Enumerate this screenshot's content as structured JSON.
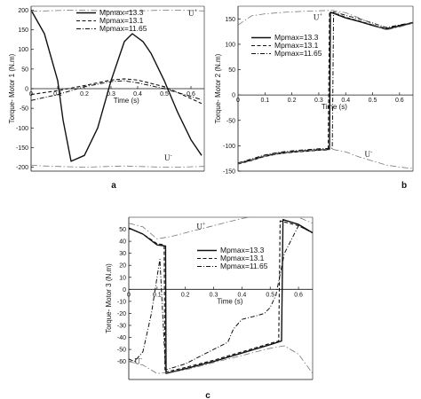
{
  "chart_data": [
    {
      "type": "line",
      "panel_label": "a",
      "ylabel": "Torque- Motor 1 (N.m)",
      "xlabel": "Time (s)",
      "xlim": [
        0,
        0.65
      ],
      "ylim": [
        -210,
        210
      ],
      "x_ticks": [
        0.1,
        0.2,
        0.3,
        0.4,
        0.5,
        0.6
      ],
      "x_tick_labels": [
        "0.1",
        "0.2",
        "0.3",
        "0.4",
        "0.5",
        "0.6"
      ],
      "y_ticks": [
        200,
        150,
        100,
        50,
        0,
        -50,
        -100,
        -150,
        -200
      ],
      "y_tick_labels": [
        "200",
        "150",
        "100",
        "50",
        "0",
        "-50",
        "-100",
        "-150",
        "-200"
      ],
      "bound_labels": [
        {
          "text": "U",
          "sup": "+",
          "x": 0.59,
          "y": 185
        },
        {
          "text": "U",
          "sup": "-",
          "x": 0.5,
          "y": -183
        }
      ],
      "legend": {
        "placement": "top-center",
        "entries": [
          "Mpmax=13.3",
          "Mpmax=13.1",
          "Mpmax=11.65"
        ]
      },
      "series": [
        {
          "name": "Mpmax=13.3",
          "style": "solid",
          "x": [
            0,
            0.05,
            0.1,
            0.12,
            0.15,
            0.2,
            0.25,
            0.3,
            0.35,
            0.38,
            0.42,
            0.45,
            0.5,
            0.55,
            0.6,
            0.64
          ],
          "y": [
            200,
            140,
            20,
            -80,
            -185,
            -170,
            -100,
            20,
            120,
            140,
            120,
            90,
            20,
            -60,
            -130,
            -170
          ]
        },
        {
          "name": "Mpmax=13.1",
          "style": "dashed",
          "x": [
            0,
            0.1,
            0.2,
            0.3,
            0.35,
            0.4,
            0.5,
            0.55,
            0.6,
            0.64
          ],
          "y": [
            -15,
            -5,
            8,
            22,
            25,
            22,
            5,
            -10,
            -25,
            -38
          ]
        },
        {
          "name": "Mpmax=11.65",
          "style": "dashdot",
          "x": [
            0,
            0.1,
            0.2,
            0.3,
            0.35,
            0.4,
            0.5,
            0.55,
            0.6,
            0.64
          ],
          "y": [
            -30,
            -15,
            5,
            18,
            20,
            15,
            0,
            -10,
            -20,
            -28
          ]
        },
        {
          "name": "U+",
          "style": "bound",
          "x": [
            0,
            0.05,
            0.1,
            0.15,
            0.2,
            0.25,
            0.3,
            0.35,
            0.4,
            0.45,
            0.5,
            0.55,
            0.6,
            0.65
          ],
          "y": [
            197,
            198,
            199,
            200,
            200,
            199,
            198,
            197,
            198,
            199,
            200,
            200,
            199,
            198
          ]
        },
        {
          "name": "U-",
          "style": "bound",
          "x": [
            0,
            0.05,
            0.1,
            0.15,
            0.2,
            0.25,
            0.3,
            0.35,
            0.4,
            0.45,
            0.5,
            0.55,
            0.6,
            0.65
          ],
          "y": [
            -195,
            -197,
            -198,
            -199,
            -200,
            -199,
            -198,
            -197,
            -198,
            -199,
            -200,
            -200,
            -199,
            -198
          ]
        }
      ]
    },
    {
      "type": "line",
      "panel_label": "b",
      "ylabel": "Torque- Motor 2 (N.m)",
      "xlabel": "Time (s)",
      "xlim": [
        0,
        0.65
      ],
      "ylim": [
        -150,
        175
      ],
      "x_ticks": [
        0.1,
        0.2,
        0.3,
        0.4,
        0.5,
        0.6
      ],
      "x_tick_labels": [
        "0.1",
        "0.2",
        "0.3",
        "0.4",
        "0.5",
        "0.6"
      ],
      "y_ticks": [
        150,
        100,
        50,
        0,
        -50,
        -100,
        -150
      ],
      "y_tick_labels": [
        "150",
        "100",
        "50",
        "0",
        "-50",
        "-100",
        "-150"
      ],
      "bound_labels": [
        {
          "text": "U",
          "sup": "+",
          "x": 0.28,
          "y": 148
        },
        {
          "text": "U",
          "sup": "-",
          "x": 0.47,
          "y": -122
        }
      ],
      "legend": {
        "placement": "top-left",
        "entries": [
          "Mpmax=13.3",
          "Mpmax=13.1",
          "Mpmax=11.65"
        ]
      },
      "series": [
        {
          "name": "Mpmax=13.3",
          "style": "solid",
          "x": [
            0,
            0.05,
            0.1,
            0.15,
            0.2,
            0.25,
            0.3,
            0.34,
            0.343,
            0.36,
            0.4,
            0.45,
            0.5,
            0.55,
            0.6,
            0.65
          ],
          "y": [
            -135,
            -128,
            -120,
            -115,
            -112,
            -110,
            -108,
            -107,
            163,
            160,
            152,
            145,
            137,
            130,
            136,
            142
          ]
        },
        {
          "name": "Mpmax=13.1",
          "style": "dashed",
          "x": [
            0,
            0.05,
            0.1,
            0.15,
            0.2,
            0.25,
            0.3,
            0.335,
            0.34,
            0.36,
            0.4,
            0.45,
            0.5,
            0.55,
            0.6,
            0.65
          ],
          "y": [
            -136,
            -129,
            -121,
            -116,
            -113,
            -111,
            -109,
            -108,
            164,
            161,
            153,
            146,
            138,
            131,
            137,
            143
          ]
        },
        {
          "name": "Mpmax=11.65",
          "style": "dashdot",
          "x": [
            0,
            0.05,
            0.1,
            0.15,
            0.2,
            0.25,
            0.3,
            0.35,
            0.355,
            0.4,
            0.45,
            0.5,
            0.55,
            0.6,
            0.65
          ],
          "y": [
            -134,
            -126,
            -118,
            -113,
            -110,
            -108,
            -106,
            -105,
            164,
            157,
            150,
            142,
            133,
            138,
            143
          ]
        },
        {
          "name": "U+",
          "style": "bound",
          "x": [
            0,
            0.05,
            0.1,
            0.15,
            0.2,
            0.25,
            0.3,
            0.35,
            0.4,
            0.45,
            0.5,
            0.55,
            0.6,
            0.65
          ],
          "y": [
            138,
            156,
            160,
            162,
            164,
            165,
            166,
            167,
            162,
            152,
            140,
            128,
            134,
            142
          ]
        },
        {
          "name": "U-",
          "style": "bound",
          "x": [
            0,
            0.05,
            0.1,
            0.15,
            0.2,
            0.25,
            0.3,
            0.35,
            0.4,
            0.45,
            0.5,
            0.55,
            0.6,
            0.65
          ],
          "y": [
            -135,
            -128,
            -120,
            -115,
            -112,
            -110,
            -108,
            -107,
            -112,
            -122,
            -130,
            -138,
            -142,
            -145
          ]
        }
      ]
    },
    {
      "type": "line",
      "panel_label": "c",
      "ylabel": "Torque- Motor 3 (N.m)",
      "xlabel": "Time (s)",
      "xlim": [
        0,
        0.65
      ],
      "ylim": [
        -75,
        60
      ],
      "x_ticks": [
        0.1,
        0.2,
        0.3,
        0.4,
        0.5,
        0.6
      ],
      "x_tick_labels": [
        "0.1",
        "0.2",
        "0.3",
        "0.4",
        "0.5",
        "0.6"
      ],
      "y_ticks": [
        50,
        40,
        30,
        20,
        10,
        0,
        -10,
        -20,
        -30,
        -40,
        -50,
        -60
      ],
      "y_tick_labels": [
        "50",
        "40",
        "30",
        "20",
        "10",
        "0",
        "-10",
        "-20",
        "-30",
        "-40",
        "-50",
        "-60"
      ],
      "bound_labels": [
        {
          "text": "U",
          "sup": "+",
          "x": 0.24,
          "y": 50
        },
        {
          "text": "U",
          "sup": "-",
          "x": 0.02,
          "y": -62
        }
      ],
      "legend": {
        "placement": "center-right",
        "entries": [
          "Mpmax=13.3",
          "Mpmax=13.1",
          "Mpmax=11.65"
        ]
      },
      "series": [
        {
          "name": "Mpmax=13.3",
          "style": "solid",
          "x": [
            0,
            0.05,
            0.1,
            0.13,
            0.132,
            0.2,
            0.3,
            0.4,
            0.5,
            0.54,
            0.545,
            0.6,
            0.65
          ],
          "y": [
            51,
            46,
            37,
            36,
            -70,
            -66,
            -60,
            -53,
            -46,
            -43,
            58,
            54,
            47
          ]
        },
        {
          "name": "Mpmax=13.1",
          "style": "dashed",
          "x": [
            0,
            0.05,
            0.1,
            0.125,
            0.128,
            0.2,
            0.3,
            0.4,
            0.5,
            0.53,
            0.535,
            0.6,
            0.65
          ],
          "y": [
            51,
            46,
            38,
            37,
            -69,
            -65,
            -59,
            -52,
            -45,
            -43,
            57,
            53,
            47
          ]
        },
        {
          "name": "Mpmax=11.65",
          "style": "dashdot",
          "x": [
            0,
            0.02,
            0.05,
            0.08,
            0.1,
            0.11,
            0.13,
            0.2,
            0.25,
            0.3,
            0.35,
            0.37,
            0.4,
            0.45,
            0.48,
            0.5,
            0.52,
            0.55,
            0.6,
            0.65
          ],
          "y": [
            -58,
            -60,
            -52,
            -20,
            10,
            25,
            -67,
            -62,
            -56,
            -50,
            -44,
            -33,
            -25,
            -22,
            -20,
            -15,
            -5,
            30,
            53,
            47
          ]
        },
        {
          "name": "U+",
          "style": "bound",
          "x": [
            0,
            0.05,
            0.1,
            0.15,
            0.2,
            0.25,
            0.3,
            0.35,
            0.4,
            0.45,
            0.5,
            0.55,
            0.6,
            0.65
          ],
          "y": [
            55,
            52,
            42,
            44,
            47,
            50,
            53,
            56,
            59,
            61,
            63,
            63,
            60,
            55
          ]
        },
        {
          "name": "U-",
          "style": "bound",
          "x": [
            0,
            0.05,
            0.1,
            0.15,
            0.2,
            0.25,
            0.3,
            0.35,
            0.4,
            0.45,
            0.5,
            0.55,
            0.6,
            0.65
          ],
          "y": [
            -60,
            -63,
            -70,
            -69,
            -67,
            -64,
            -61,
            -58,
            -55,
            -52,
            -49,
            -47,
            -54,
            -70
          ]
        }
      ]
    }
  ]
}
